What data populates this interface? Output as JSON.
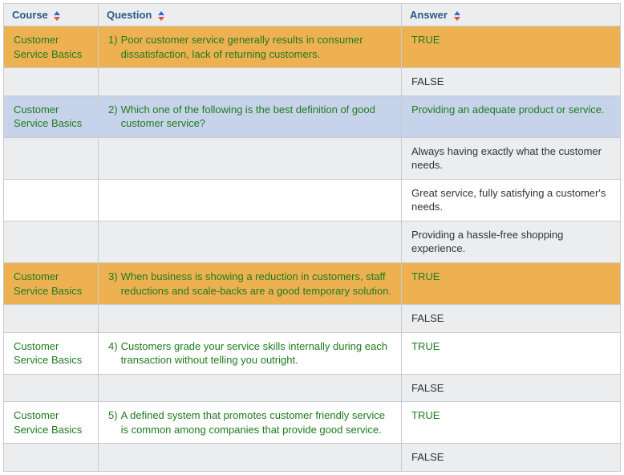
{
  "colors": {
    "header_bg": "#ebedee",
    "header_text": "#265a8a",
    "border": "#c8cbce",
    "row_orange": "#eeb152",
    "row_blue": "#c7d3ea",
    "row_grey": "#ebedee",
    "row_white": "#ffffff",
    "text_green": "#1e7b1e",
    "text_black": "#333333",
    "sort_up": "#3366cc",
    "sort_down": "#d9534f"
  },
  "columns": {
    "course": "Course",
    "question": "Question",
    "answer": "Answer"
  },
  "rows": [
    {
      "bg": "bg-orange",
      "course": "Customer Service Basics",
      "qnum": "1)",
      "qtext": "Poor customer service generally results in consumer dissatisfaction, lack of returning customers.",
      "answer": "TRUE",
      "txt": "txt-green"
    },
    {
      "bg": "bg-grey",
      "course": "",
      "qnum": "",
      "qtext": "",
      "answer": "FALSE",
      "txt": "txt-black"
    },
    {
      "bg": "bg-blue",
      "course": "Customer Service Basics",
      "qnum": "2)",
      "qtext": "Which one of the following is the best definition of good customer service?",
      "answer": "Providing an adequate product or service.",
      "txt": "txt-green"
    },
    {
      "bg": "bg-grey",
      "course": "",
      "qnum": "",
      "qtext": "",
      "answer": "Always having exactly what the customer needs.",
      "txt": "txt-black"
    },
    {
      "bg": "bg-white",
      "course": "",
      "qnum": "",
      "qtext": "",
      "answer": "Great service, fully satisfying a customer's needs.",
      "txt": "txt-black"
    },
    {
      "bg": "bg-grey",
      "course": "",
      "qnum": "",
      "qtext": "",
      "answer": "Providing a hassle-free shopping experience.",
      "txt": "txt-black"
    },
    {
      "bg": "bg-orange",
      "course": "Customer Service Basics",
      "qnum": "3)",
      "qtext": "When business is showing a reduction in customers, staff reductions and scale-backs are a good temporary solution.",
      "answer": "TRUE",
      "txt": "txt-green"
    },
    {
      "bg": "bg-grey",
      "course": "",
      "qnum": "",
      "qtext": "",
      "answer": "FALSE",
      "txt": "txt-black"
    },
    {
      "bg": "bg-white",
      "course": "Customer Service Basics",
      "qnum": "4)",
      "qtext": "Customers grade your service skills internally during each transaction without telling you outright.",
      "answer": "TRUE",
      "txt": "txt-green"
    },
    {
      "bg": "bg-grey",
      "course": "",
      "qnum": "",
      "qtext": "",
      "answer": "FALSE",
      "txt": "txt-black"
    },
    {
      "bg": "bg-white",
      "course": "Customer Service Basics",
      "qnum": "5)",
      "qtext": "A defined system that promotes customer friendly service is common among companies that provide good service.",
      "answer": "TRUE",
      "txt": "txt-green"
    },
    {
      "bg": "bg-grey",
      "course": "",
      "qnum": "",
      "qtext": "",
      "answer": "FALSE",
      "txt": "txt-black"
    }
  ]
}
